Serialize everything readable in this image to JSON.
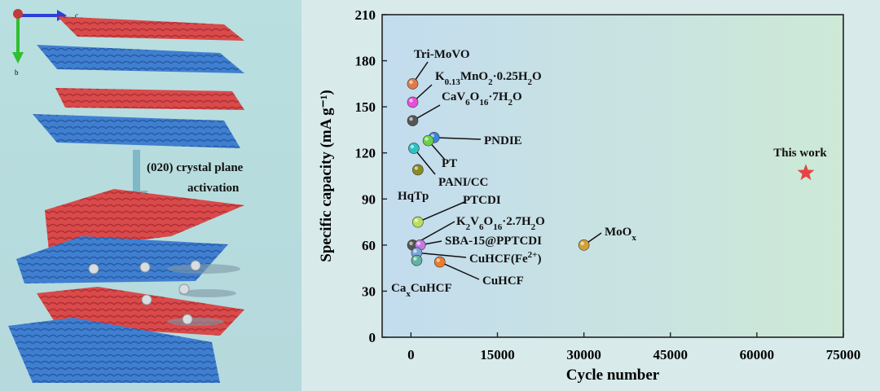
{
  "illustration": {
    "axis_labels": {
      "c": "c",
      "b": "b"
    },
    "caption_line1": "(020) crystal plane",
    "caption_line2": "activation",
    "colors": {
      "red_layer": "#d94a4a",
      "blue_layer": "#3f7fd0",
      "arrow": "#7fb8c6",
      "axis_x": "#2b3fd6",
      "axis_y": "#2fbf2f"
    }
  },
  "chart_data": {
    "type": "scatter",
    "xlabel": "Cycle number",
    "ylabel": "Specific capacity (mA g⁻¹)",
    "xlim": [
      -5000,
      75000
    ],
    "ylim": [
      0,
      210
    ],
    "xticks": [
      0,
      15000,
      30000,
      45000,
      60000,
      75000
    ],
    "yticks": [
      0,
      30,
      60,
      90,
      120,
      150,
      180,
      210
    ],
    "grid": false,
    "background": {
      "left": "#c3dcee",
      "right": "#cde9d6"
    },
    "points": [
      {
        "label": "Tri-MoVO",
        "x": 300,
        "y": 165,
        "color": "#e07a4a",
        "marker": "circle"
      },
      {
        "label": "K0.13MnO2·0.25H2O",
        "x": 300,
        "y": 153,
        "color": "#e84fd8",
        "marker": "circle"
      },
      {
        "label": "CaV6O16·7H2O",
        "x": 300,
        "y": 141,
        "color": "#555555",
        "marker": "circle"
      },
      {
        "label": "PNDIE",
        "x": 4000,
        "y": 130,
        "color": "#3c86e0",
        "marker": "circle"
      },
      {
        "label": "PT",
        "x": 3000,
        "y": 128,
        "color": "#6ad04a",
        "marker": "circle"
      },
      {
        "label": "PANI/CC",
        "x": 500,
        "y": 123,
        "color": "#2fc0c4",
        "marker": "circle"
      },
      {
        "label": "HqTp",
        "x": 1200,
        "y": 109,
        "color": "#8a8a22",
        "marker": "circle"
      },
      {
        "label": "PTCDI",
        "x": 1200,
        "y": 75,
        "color": "#b9e05a",
        "marker": "circle"
      },
      {
        "label": "K2V6O16·2.7H2O",
        "x": 300,
        "y": 60,
        "color": "#555555",
        "marker": "circle"
      },
      {
        "label": "SBA-15@PPTCDI",
        "x": 1600,
        "y": 60,
        "color": "#c47ae0",
        "marker": "circle"
      },
      {
        "label": "CuHCF(Fe2+)",
        "x": 1000,
        "y": 55,
        "color": "#7aa6d8",
        "marker": "circle"
      },
      {
        "label": "CaxCuHCF",
        "x": 1000,
        "y": 50,
        "color": "#5fb3a0",
        "marker": "circle"
      },
      {
        "label": "CuHCF",
        "x": 5000,
        "y": 49,
        "color": "#ee7a2a",
        "marker": "circle"
      },
      {
        "label": "MoOx",
        "x": 30000,
        "y": 60,
        "color": "#d4a030",
        "marker": "circle"
      },
      {
        "label": "This work",
        "x": 68500,
        "y": 107,
        "color": "#e54444",
        "marker": "star"
      }
    ]
  }
}
